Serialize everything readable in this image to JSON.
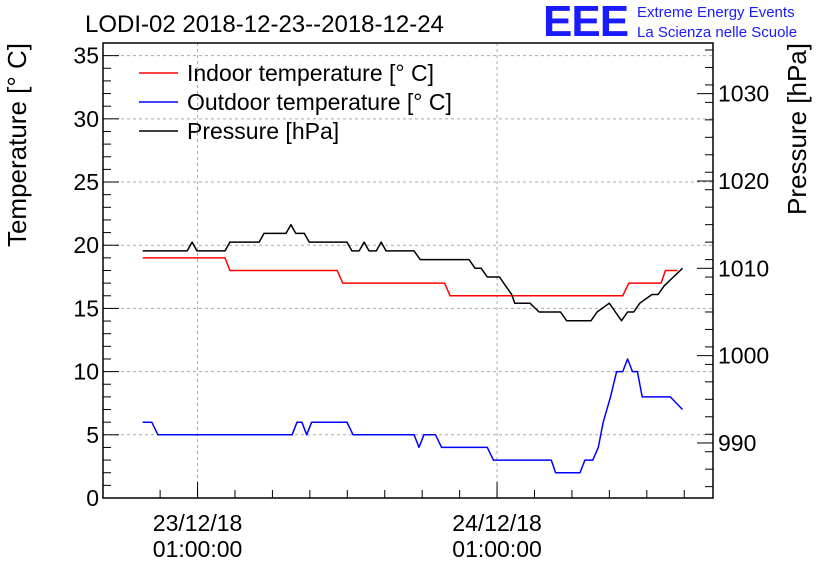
{
  "chart_data": {
    "type": "line",
    "title": "LODI-02 2018-12-23--2018-12-24",
    "ylabel": "Temperature [° C]",
    "y2label": "Pressure [hPa]",
    "ylim": [
      0,
      36
    ],
    "y2lim": [
      983.7,
      1035.8
    ],
    "yticks": [
      "0",
      "5",
      "10",
      "15",
      "20",
      "25",
      "30",
      "35"
    ],
    "y2ticks": [
      "990",
      "1000",
      "1010",
      "1020",
      "1030"
    ],
    "xlim": [
      0,
      1
    ],
    "xticks": [
      {
        "x": 0.155,
        "date": "23/12/18",
        "time": "01:00:00"
      },
      {
        "x": 0.646,
        "date": "24/12/18",
        "time": "01:00:00"
      }
    ],
    "grid": true,
    "legend_position": "top-left",
    "series": [
      {
        "name": "Indoor temperature [° C]",
        "axis": "left",
        "color": "#ff0000",
        "points": [
          [
            0.065,
            19
          ],
          [
            0.085,
            19
          ],
          [
            0.115,
            19
          ],
          [
            0.175,
            19
          ],
          [
            0.2,
            19
          ],
          [
            0.208,
            18
          ],
          [
            0.26,
            18
          ],
          [
            0.31,
            18
          ],
          [
            0.364,
            18
          ],
          [
            0.384,
            18
          ],
          [
            0.393,
            17
          ],
          [
            0.44,
            17
          ],
          [
            0.5,
            17
          ],
          [
            0.56,
            17
          ],
          [
            0.569,
            16
          ],
          [
            0.62,
            16
          ],
          [
            0.7,
            16
          ],
          [
            0.8,
            16
          ],
          [
            0.852,
            16
          ],
          [
            0.862,
            17
          ],
          [
            0.88,
            17
          ],
          [
            0.915,
            17
          ],
          [
            0.922,
            18
          ],
          [
            0.942,
            18
          ]
        ]
      },
      {
        "name": "Outdoor temperature [° C]",
        "axis": "left",
        "color": "#0000ff",
        "points": [
          [
            0.065,
            6
          ],
          [
            0.08,
            6
          ],
          [
            0.09,
            5
          ],
          [
            0.2,
            5
          ],
          [
            0.31,
            5
          ],
          [
            0.318,
            6
          ],
          [
            0.326,
            6
          ],
          [
            0.334,
            5
          ],
          [
            0.342,
            6
          ],
          [
            0.36,
            6
          ],
          [
            0.4,
            6
          ],
          [
            0.41,
            5
          ],
          [
            0.47,
            5
          ],
          [
            0.51,
            5
          ],
          [
            0.518,
            4
          ],
          [
            0.526,
            5
          ],
          [
            0.545,
            5
          ],
          [
            0.555,
            4
          ],
          [
            0.6,
            4
          ],
          [
            0.63,
            4
          ],
          [
            0.64,
            3
          ],
          [
            0.7,
            3
          ],
          [
            0.735,
            3
          ],
          [
            0.742,
            2
          ],
          [
            0.782,
            2
          ],
          [
            0.79,
            3
          ],
          [
            0.803,
            3
          ],
          [
            0.812,
            4
          ],
          [
            0.82,
            6
          ],
          [
            0.832,
            8
          ],
          [
            0.842,
            10
          ],
          [
            0.852,
            10
          ],
          [
            0.86,
            11
          ],
          [
            0.868,
            10
          ],
          [
            0.876,
            10
          ],
          [
            0.884,
            8
          ],
          [
            0.9,
            8
          ],
          [
            0.93,
            8
          ],
          [
            0.95,
            7
          ]
        ]
      },
      {
        "name": "Pressure [hPa]",
        "axis": "right",
        "color": "#000000",
        "points": [
          [
            0.065,
            1012
          ],
          [
            0.1,
            1012
          ],
          [
            0.115,
            1012
          ],
          [
            0.125,
            1012
          ],
          [
            0.138,
            1012
          ],
          [
            0.146,
            1013
          ],
          [
            0.154,
            1012
          ],
          [
            0.185,
            1012
          ],
          [
            0.2,
            1012
          ],
          [
            0.208,
            1013
          ],
          [
            0.24,
            1013
          ],
          [
            0.256,
            1013
          ],
          [
            0.264,
            1014
          ],
          [
            0.3,
            1014
          ],
          [
            0.308,
            1015
          ],
          [
            0.316,
            1014
          ],
          [
            0.33,
            1014
          ],
          [
            0.338,
            1013
          ],
          [
            0.35,
            1013
          ],
          [
            0.4,
            1013
          ],
          [
            0.408,
            1012
          ],
          [
            0.42,
            1012
          ],
          [
            0.428,
            1013
          ],
          [
            0.436,
            1012
          ],
          [
            0.44,
            1012
          ],
          [
            0.448,
            1012
          ],
          [
            0.456,
            1013
          ],
          [
            0.464,
            1012
          ],
          [
            0.5,
            1012
          ],
          [
            0.51,
            1012
          ],
          [
            0.52,
            1011
          ],
          [
            0.56,
            1011
          ],
          [
            0.6,
            1011
          ],
          [
            0.61,
            1010
          ],
          [
            0.62,
            1010
          ],
          [
            0.63,
            1009
          ],
          [
            0.65,
            1009
          ],
          [
            0.66,
            1008
          ],
          [
            0.67,
            1007
          ],
          [
            0.675,
            1006
          ],
          [
            0.7,
            1006
          ],
          [
            0.715,
            1005
          ],
          [
            0.75,
            1005
          ],
          [
            0.76,
            1004
          ],
          [
            0.78,
            1004
          ],
          [
            0.8,
            1004
          ],
          [
            0.81,
            1005
          ],
          [
            0.83,
            1006
          ],
          [
            0.84,
            1005
          ],
          [
            0.85,
            1004
          ],
          [
            0.86,
            1005
          ],
          [
            0.87,
            1005
          ],
          [
            0.88,
            1006
          ],
          [
            0.9,
            1007
          ],
          [
            0.91,
            1007
          ],
          [
            0.92,
            1008
          ],
          [
            0.935,
            1009
          ],
          [
            0.95,
            1010
          ]
        ]
      }
    ]
  },
  "logo": {
    "mark": "EEE",
    "line1": "Extreme Energy Events",
    "line2": "La Scienza nelle Scuole"
  },
  "colors": {
    "logo": "#1a1aff",
    "grid": "#aaaaaa"
  }
}
